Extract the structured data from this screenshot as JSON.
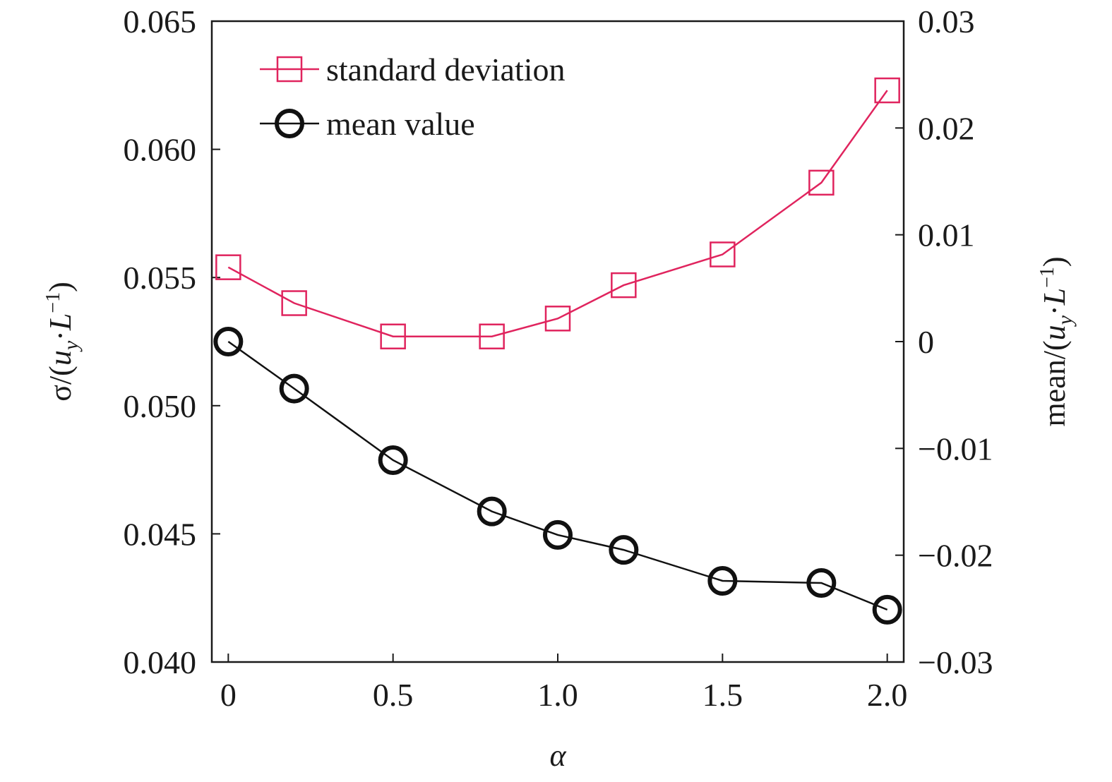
{
  "chart_data": {
    "type": "line",
    "x": [
      0,
      0.2,
      0.5,
      0.8,
      1.0,
      1.2,
      1.5,
      1.8,
      2.0
    ],
    "xlim": [
      -0.05,
      2.05
    ],
    "xticks": [
      0,
      0.5,
      1.0,
      1.5,
      2.0
    ],
    "xtick_labels": [
      "0",
      "0.5",
      "1.0",
      "1.5",
      "2.0"
    ],
    "xlabel": "α",
    "ylim_left": [
      0.04,
      0.065
    ],
    "yticks_left": [
      0.04,
      0.045,
      0.05,
      0.055,
      0.06,
      0.065
    ],
    "ytick_labels_left": [
      "0.040",
      "0.045",
      "0.050",
      "0.055",
      "0.060",
      "0.065"
    ],
    "ylabel_left": {
      "prefix": "σ/(",
      "var": "u",
      "sub": "y",
      "mid": "·",
      "var2": "L",
      "sup": "−1",
      "suffix": ")"
    },
    "ylim_right": [
      -0.03,
      0.03
    ],
    "yticks_right": [
      -0.03,
      -0.02,
      -0.01,
      0,
      0.01,
      0.02,
      0.03
    ],
    "ytick_labels_right": [
      "−0.03",
      "−0.02",
      "−0.01",
      "0",
      "0.01",
      "0.02",
      "0.03"
    ],
    "ylabel_right": {
      "prefix": "mean/(",
      "var": "u",
      "sub": "y",
      "mid": "·",
      "var2": "L",
      "sup": "−1",
      "suffix": ")"
    },
    "series": [
      {
        "name": "standard deviation",
        "axis": "left",
        "marker": "square",
        "color": "#e0245e",
        "values": [
          0.0554,
          0.054,
          0.0527,
          0.0527,
          0.0534,
          0.0547,
          0.0559,
          0.0587,
          0.0623
        ]
      },
      {
        "name": "mean value",
        "axis": "right",
        "marker": "circle",
        "color": "#111111",
        "values": [
          0.0,
          -0.0044,
          -0.0111,
          -0.0159,
          -0.0181,
          -0.0195,
          -0.0224,
          -0.0226,
          -0.0251
        ]
      }
    ],
    "legend_position": "top-left",
    "grid": false
  }
}
